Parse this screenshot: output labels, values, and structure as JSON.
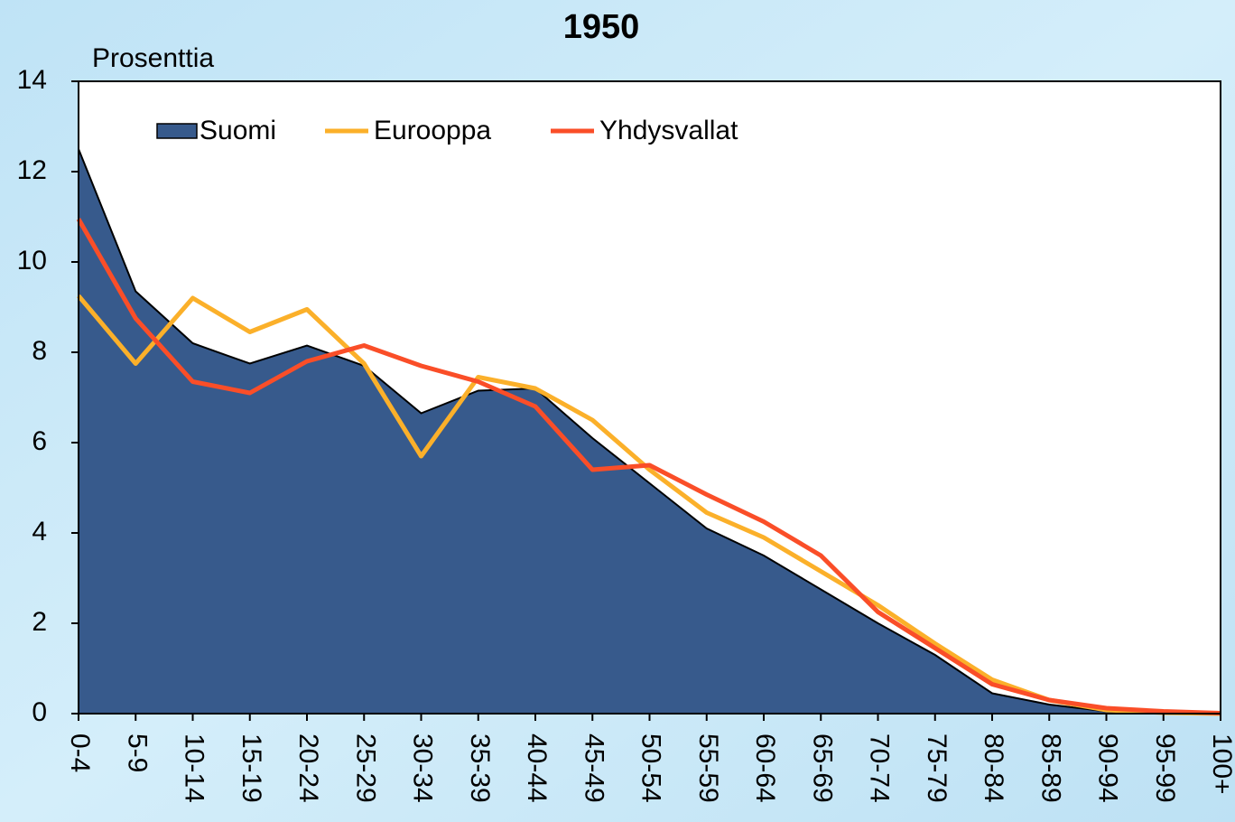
{
  "chart_data": {
    "type": "area-line",
    "title": "1950",
    "y_label": "Prosenttia",
    "categories": [
      "0-4",
      "5-9",
      "10-14",
      "15-19",
      "20-24",
      "25-29",
      "30-34",
      "35-39",
      "40-44",
      "45-49",
      "50-54",
      "55-59",
      "60-64",
      "65-69",
      "70-74",
      "75-79",
      "80-84",
      "85-89",
      "90-94",
      "95-99",
      "100+"
    ],
    "series": [
      {
        "name": "Suomi",
        "kind": "area",
        "color": "#375a8c",
        "values": [
          12.5,
          9.35,
          8.2,
          7.75,
          8.15,
          7.7,
          6.65,
          7.15,
          7.2,
          6.1,
          5.1,
          4.1,
          3.5,
          2.75,
          2.0,
          1.3,
          0.45,
          0.2,
          0.05,
          0.01,
          0
        ]
      },
      {
        "name": "Eurooppa",
        "kind": "line",
        "color": "#fbb02a",
        "values": [
          9.25,
          7.75,
          9.2,
          8.45,
          8.95,
          7.75,
          5.7,
          7.45,
          7.2,
          6.5,
          5.4,
          4.45,
          3.9,
          3.15,
          2.4,
          1.55,
          0.75,
          0.3,
          0.08,
          0.02,
          0
        ]
      },
      {
        "name": "Yhdysvallat",
        "kind": "line",
        "color": "#fa4e28",
        "values": [
          10.95,
          8.75,
          7.35,
          7.1,
          7.8,
          8.15,
          7.7,
          7.35,
          6.8,
          5.4,
          5.5,
          4.85,
          4.25,
          3.5,
          2.25,
          1.45,
          0.65,
          0.3,
          0.12,
          0.05,
          0.01
        ]
      }
    ],
    "ylim": [
      0,
      14
    ],
    "yticks": [
      0,
      2,
      4,
      6,
      8,
      10,
      12,
      14
    ]
  }
}
